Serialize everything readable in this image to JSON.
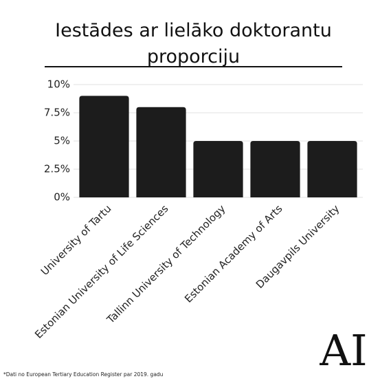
{
  "chart_data": {
    "type": "bar",
    "title": "Iestādes ar lielāko doktorantu proporciju",
    "categories": [
      "University of Tartu",
      "Estonian University of Life Sciences",
      "Tallinn University of Technology",
      "Estonian Academy of Arts",
      "Daugavpils University"
    ],
    "values": [
      9,
      8,
      5,
      5,
      5
    ],
    "color": "#1c1c1c",
    "ylim": [
      0,
      10
    ],
    "yticks": [
      {
        "value": 0,
        "label": "0%"
      },
      {
        "value": 2.5,
        "label": "2.5%"
      },
      {
        "value": 5,
        "label": "5%"
      },
      {
        "value": 7.5,
        "label": "7.5%"
      },
      {
        "value": 10,
        "label": "10%"
      }
    ],
    "grid": true,
    "note": "*Dati no European Tertiary Education Register par 2019. gadu",
    "logo": "AI"
  }
}
